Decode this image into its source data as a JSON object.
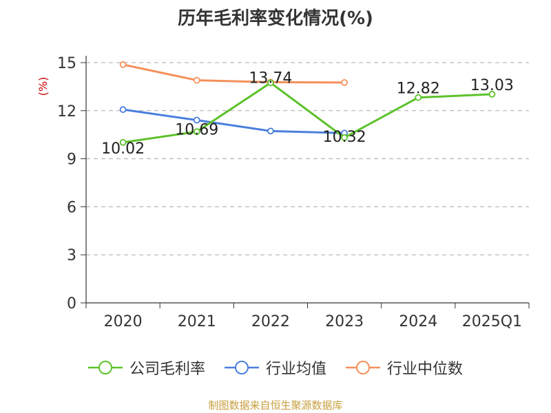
{
  "chart_data": {
    "type": "line",
    "title": "历年毛利率变化情况(%)",
    "ylabel": "(%)",
    "categories": [
      "2020",
      "2021",
      "2022",
      "2023",
      "2024",
      "2025Q1"
    ],
    "ylim": [
      0,
      15
    ],
    "yticks": [
      0,
      3,
      6,
      9,
      12,
      15
    ],
    "grid": true,
    "legend_position": "bottom",
    "series": [
      {
        "name": "公司毛利率",
        "color": "#5cc22a",
        "values": [
          10.02,
          10.69,
          13.74,
          10.32,
          12.82,
          13.03
        ],
        "labels": [
          "10.02",
          "10.69",
          "13.74",
          "10.32",
          "12.82",
          "13.03"
        ]
      },
      {
        "name": "行业均值",
        "color": "#4a7fdc",
        "values": [
          12.07,
          11.41,
          10.73,
          10.6,
          null,
          null
        ]
      },
      {
        "name": "行业中位数",
        "color": "#f5905a",
        "values": [
          14.88,
          13.9,
          13.78,
          13.76,
          null,
          null
        ]
      }
    ]
  },
  "source_text": "制图数据来自恒生聚源数据库"
}
